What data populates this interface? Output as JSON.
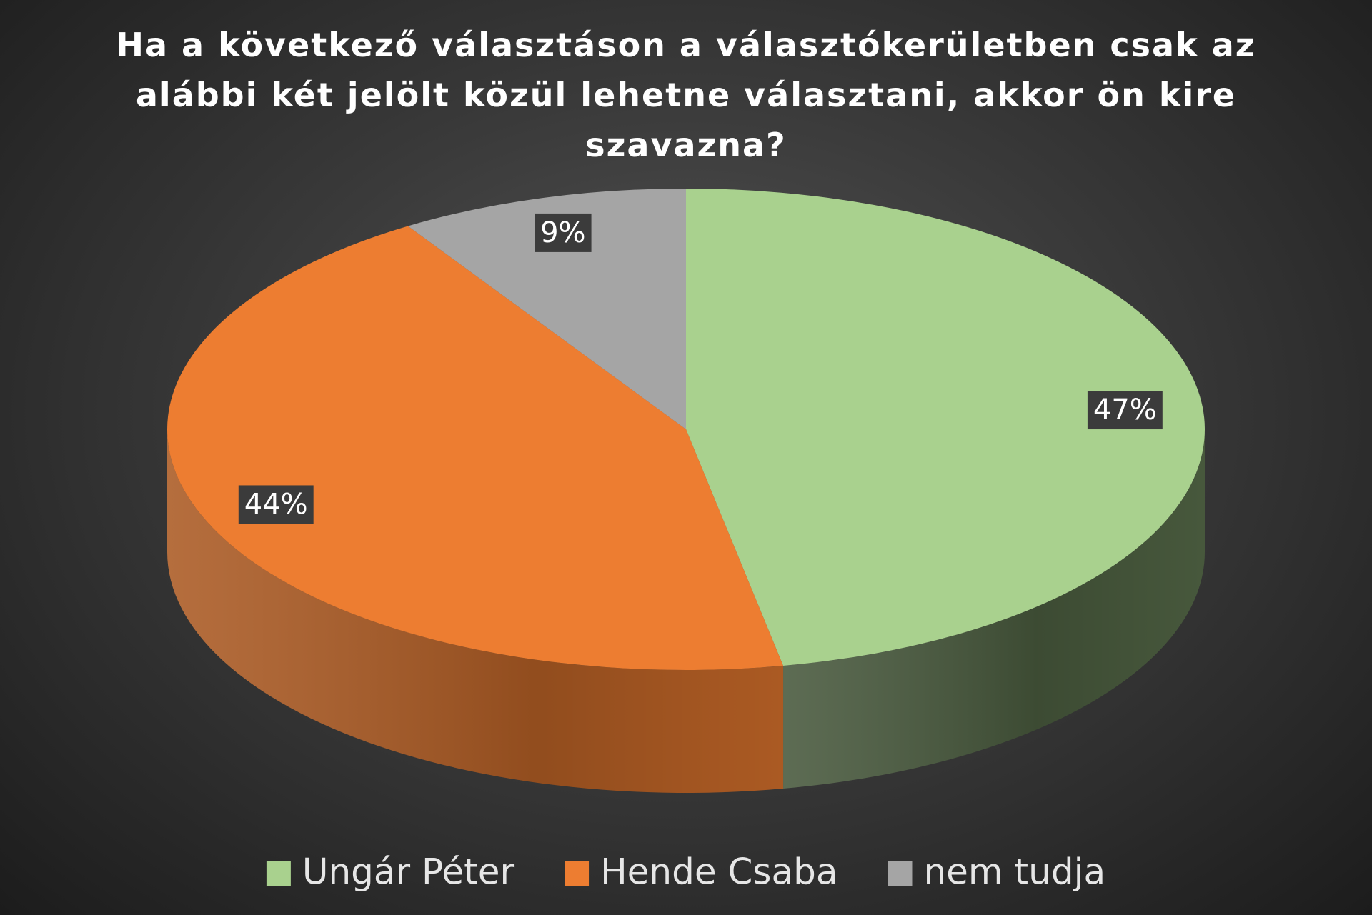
{
  "chart_data": {
    "type": "pie3d",
    "title": "Ha a következő választáson a választókerületben csak az alábbi két jelölt közül lehetne választani, akkor ön kire szavazna?",
    "categories": [
      "Ungár Péter",
      "Hende Csaba",
      "nem tudja"
    ],
    "values": [
      47,
      44,
      9
    ],
    "value_labels": [
      "47%",
      "44%",
      "9%"
    ],
    "colors": [
      "#a9d18e",
      "#ed7d31",
      "#a5a5a5"
    ],
    "legend": "bottom"
  }
}
